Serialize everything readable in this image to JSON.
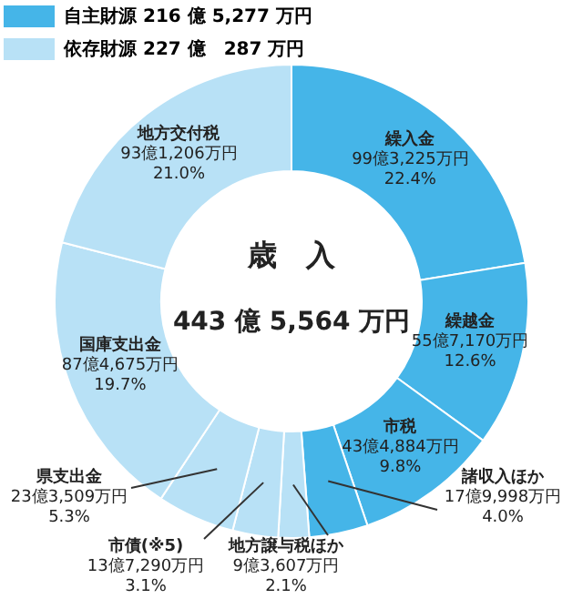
{
  "chart_data": {
    "type": "donut",
    "title": "歳　入",
    "subtitle": "443 億 5,564 万円",
    "categories": [
      "繰入金",
      "繰越金",
      "市税",
      "諸収入ほか",
      "地方譲与税ほか",
      "市債(※5)",
      "県支出金",
      "国庫支出金",
      "地方交付税"
    ],
    "values": [
      22.4,
      12.6,
      9.8,
      4.0,
      2.1,
      3.1,
      5.3,
      19.7,
      21.0
    ],
    "colors": [
      "#45b5e8",
      "#45b5e8",
      "#45b5e8",
      "#45b5e8",
      "#b8e1f6",
      "#b8e1f6",
      "#b8e1f6",
      "#b8e1f6",
      "#b8e1f6"
    ],
    "value_labels": [
      "99億3,225万円\n22.4%",
      "55億7,170万円\n12.6%",
      "43億4,884万円\n9.8%",
      "17億9,998万円\n4.0%",
      "9億3,607万円\n2.1%",
      "13億7,290万円\n3.1%",
      "23億3,509万円\n5.3%",
      "87億4,675万円\n19.7%",
      "93億1,206万円\n21.0%"
    ],
    "annotations": [
      "自主財源 216 億 5,277 万円",
      "依存財源 227 億　287 万円"
    ]
  }
}
